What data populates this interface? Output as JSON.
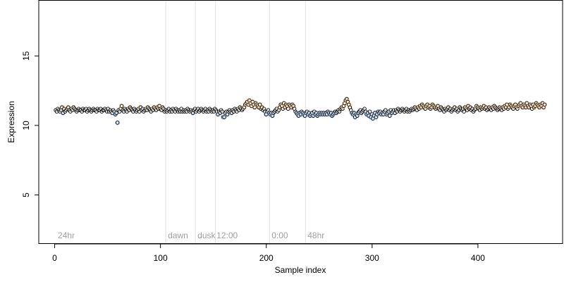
{
  "chart_data": {
    "type": "scatter",
    "title": "",
    "xlabel": "Sample index",
    "ylabel": "Expression",
    "xlim": [
      -15,
      480
    ],
    "ylim": [
      1.5,
      19
    ],
    "x_ticks": [
      0,
      100,
      200,
      300,
      400
    ],
    "y_ticks": [
      5,
      10,
      15
    ],
    "grid": false,
    "phase_lines": [
      105,
      133,
      152,
      203,
      237
    ],
    "phase_labels": [
      {
        "text": "24hr",
        "x": 3
      },
      {
        "text": "dawn",
        "x": 107
      },
      {
        "text": "dusk",
        "x": 135
      },
      {
        "text": "12:00",
        "x": 153
      },
      {
        "text": "0:00",
        "x": 205
      },
      {
        "text": "48hr",
        "x": 239
      }
    ],
    "colors": {
      "point_fill": "#ffffff",
      "point_stroke": "#000000",
      "high_highlight": "#f5c58a",
      "low_highlight": "#9ec0ea",
      "phase_line": "#e0e0e0",
      "phase_label": "#a0a0a0"
    },
    "series": [
      {
        "values": [
          11.1,
          11.0,
          11.2,
          11.1,
          11.0,
          11.1,
          11.3,
          10.9,
          11.2,
          11.0,
          11.1,
          11.2,
          11.3,
          11.1,
          11.0,
          11.2,
          11.1,
          11.3,
          11.2,
          11.1,
          11.0,
          11.1,
          11.2,
          11.1,
          11.1,
          11.0,
          11.2,
          11.1,
          11.1,
          11.2,
          11.0,
          11.1,
          11.2,
          11.1,
          11.0,
          11.1,
          11.2,
          11.1,
          11.1,
          11.0,
          11.2,
          11.1,
          11.1,
          11.2,
          11.0,
          11.1,
          11.1,
          11.2,
          11.1,
          11.0,
          11.2,
          11.0,
          11.1,
          11.0,
          10.9,
          11.1,
          11.0,
          10.8,
          10.9,
          10.2,
          11.1,
          11.0,
          11.2,
          11.4,
          11.1,
          11.0,
          11.2,
          11.1,
          11.0,
          11.2,
          11.1,
          11.3,
          11.2,
          11.1,
          11.0,
          11.2,
          11.1,
          11.0,
          11.1,
          11.2,
          11.0,
          11.3,
          11.1,
          11.2,
          11.0,
          11.1,
          11.2,
          11.1,
          11.3,
          11.2,
          11.1,
          11.0,
          11.2,
          11.1,
          11.3,
          11.2,
          11.1,
          11.3,
          11.2,
          11.4,
          11.2,
          11.1,
          11.3,
          11.2,
          11.0,
          11.1,
          11.0,
          11.1,
          11.2,
          11.0,
          11.1,
          11.0,
          11.2,
          11.1,
          11.0,
          11.2,
          11.1,
          11.0,
          11.1,
          11.0,
          11.2,
          11.0,
          11.1,
          11.0,
          11.1,
          11.0,
          11.2,
          11.1,
          11.0,
          11.1,
          11.0,
          10.9,
          11.1,
          11.2,
          11.0,
          11.1,
          11.2,
          11.0,
          11.1,
          11.2,
          11.1,
          11.0,
          11.1,
          11.2,
          11.0,
          11.1,
          11.0,
          11.2,
          11.1,
          11.0,
          11.1,
          11.0,
          11.2,
          11.1,
          11.0,
          10.8,
          11.0,
          10.9,
          11.1,
          11.0,
          10.6,
          10.6,
          10.9,
          11.0,
          10.8,
          11.0,
          11.1,
          11.0,
          10.9,
          11.1,
          11.0,
          11.2,
          11.1,
          11.0,
          11.2,
          11.1,
          11.3,
          11.2,
          11.1,
          11.2,
          11.3,
          11.5,
          11.6,
          11.7,
          11.5,
          11.8,
          11.6,
          11.4,
          11.7,
          11.5,
          11.3,
          11.6,
          11.5,
          11.4,
          11.3,
          11.5,
          11.2,
          11.3,
          11.1,
          11.2,
          11.0,
          10.8,
          11.0,
          11.1,
          10.9,
          10.8,
          10.9,
          10.7,
          10.9,
          11.0,
          11.1,
          11.2,
          11.0,
          11.1,
          11.3,
          11.5,
          11.4,
          11.2,
          11.6,
          11.3,
          11.5,
          11.4,
          11.2,
          11.5,
          11.4,
          11.3,
          11.5,
          11.4,
          11.2,
          11.0,
          10.9,
          10.8,
          10.7,
          10.9,
          10.8,
          11.0,
          10.9,
          10.8,
          10.7,
          10.9,
          11.0,
          10.8,
          10.9,
          10.7,
          10.8,
          10.9,
          10.7,
          11.0,
          10.8,
          10.9,
          10.7,
          10.8,
          10.9,
          10.8,
          10.9,
          10.8,
          10.9,
          10.8,
          10.9,
          10.8,
          11.0,
          10.9,
          10.8,
          10.9,
          10.7,
          10.8,
          10.9,
          11.0,
          10.9,
          11.0,
          11.1,
          11.0,
          11.2,
          11.3,
          11.2,
          11.4,
          11.6,
          11.8,
          11.9,
          11.7,
          11.5,
          11.3,
          11.1,
          10.9,
          10.8,
          10.9,
          10.6,
          10.8,
          10.7,
          10.9,
          11.0,
          11.1,
          10.9,
          11.0,
          11.1,
          11.2,
          11.0,
          10.8,
          10.9,
          10.7,
          11.0,
          10.6,
          10.8,
          10.5,
          10.7,
          10.9,
          10.6,
          10.8,
          11.0,
          10.9,
          11.0,
          10.8,
          10.9,
          10.8,
          11.0,
          11.1,
          10.8,
          10.9,
          11.0,
          10.7,
          11.1,
          10.9,
          11.0,
          11.1,
          10.9,
          11.1,
          11.0,
          11.2,
          11.1,
          11.0,
          11.1,
          11.2,
          11.1,
          11.0,
          11.1,
          11.2,
          11.0,
          11.1,
          11.0,
          11.1,
          11.2,
          11.1,
          11.2,
          11.3,
          11.2,
          11.1,
          11.3,
          11.2,
          11.4,
          11.3,
          11.5,
          11.4,
          11.3,
          11.2,
          11.4,
          11.5,
          11.3,
          11.4,
          11.2,
          11.3,
          11.5,
          11.4,
          11.3,
          11.2,
          11.3,
          11.4,
          11.2,
          11.1,
          11.3,
          11.2,
          11.1,
          11.0,
          11.2,
          11.1,
          11.2,
          11.3,
          11.1,
          11.2,
          11.0,
          11.1,
          11.2,
          11.3,
          11.1,
          11.2,
          11.0,
          11.1,
          11.3,
          11.2,
          11.1,
          11.2,
          11.0,
          11.3,
          11.2,
          11.1,
          11.4,
          11.2,
          11.3,
          11.1,
          11.2,
          11.0,
          11.1,
          11.2,
          11.4,
          11.3,
          11.2,
          11.1,
          11.3,
          11.2,
          11.3,
          11.4,
          11.2,
          11.3,
          11.1,
          11.2,
          11.3,
          11.2,
          11.1,
          11.3,
          11.2,
          11.4,
          11.3,
          11.2,
          11.1,
          11.2,
          11.3,
          11.2,
          11.1,
          11.3,
          11.2,
          11.4,
          11.3,
          11.5,
          11.2,
          11.3,
          11.5,
          11.4,
          11.3,
          11.2,
          11.4,
          11.5,
          11.3,
          11.2,
          11.4,
          11.5,
          11.6,
          11.4,
          11.3,
          11.5,
          11.4,
          11.3,
          11.6,
          11.4,
          11.3,
          11.5,
          11.4,
          11.2,
          11.5,
          11.3,
          11.4,
          11.6,
          11.5,
          11.4,
          11.3,
          11.5,
          11.4,
          11.6,
          11.3,
          11.5
        ]
      }
    ]
  }
}
